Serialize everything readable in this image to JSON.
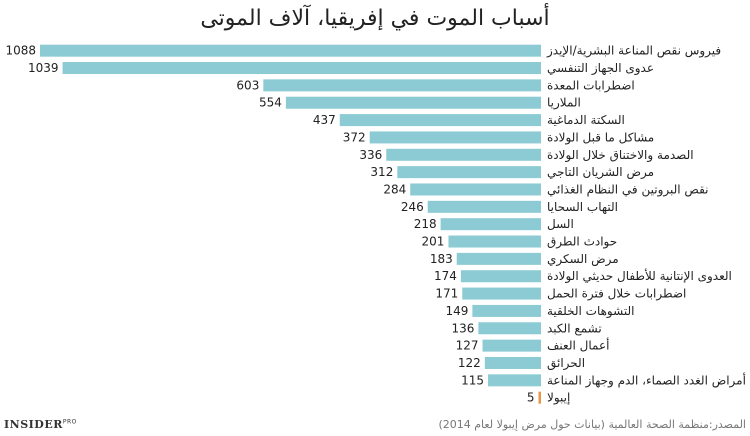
{
  "chart_data": {
    "type": "bar",
    "orientation": "horizontal",
    "title": "أسباب الموت في إفريقيا، آلاف الموتى",
    "categories": [
      "فيروس نقص المناعة البشرية/الإيدز",
      "عدوى الجهاز التنفسي",
      "اضطرابات المعدة",
      "الملاريا",
      "السكتة الدماغية",
      "مشاكل ما قبل الولادة",
      "الصدمة والاختناق خلال الولادة",
      "مرض الشريان التاجي",
      "نقص البروتين في النظام الغذائي",
      "التهاب السحايا",
      "السل",
      "حوادث الطرق",
      "مرض السكري",
      "العدوى الإنتانية للأطفال حديثي الولادة",
      "اضطرابات خلال فترة الحمل",
      "التشوهات الخلقية",
      "تشمع الكبد",
      "أعمال العنف",
      "الحرائق",
      "أمراض الغدد الصماء، الدم وجهاز المناعة",
      "إيبولا"
    ],
    "values": [
      1088,
      1039,
      603,
      554,
      437,
      372,
      336,
      312,
      284,
      246,
      218,
      201,
      183,
      174,
      171,
      149,
      136,
      127,
      122,
      115,
      5
    ],
    "xlim": [
      0,
      1088
    ],
    "grid": false,
    "legend": "none",
    "bar_color": "#8ccbd3",
    "highlight_color": "#e8964a",
    "highlight_category": "إيبولا"
  },
  "footer": {
    "brand": "INSIDER",
    "brand_suffix": "PRO",
    "source": "المصدر:منظمة الصحة العالمية (بيانات حول مرض إيبولا لعام 2014)"
  }
}
